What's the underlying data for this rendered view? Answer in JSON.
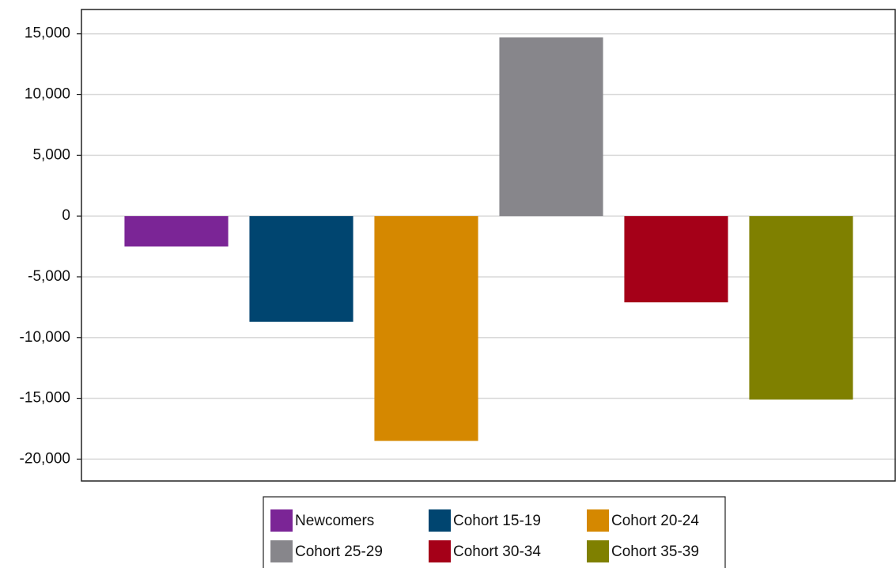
{
  "chart_data": {
    "type": "bar",
    "series": [
      {
        "name": "Newcomers",
        "color": "#7b2596",
        "values": [
          -2500
        ]
      },
      {
        "name": "Cohort 15-19",
        "color": "#004570",
        "values": [
          -8700
        ]
      },
      {
        "name": "Cohort 20-24",
        "color": "#d58800",
        "values": [
          -18500
        ]
      },
      {
        "name": "Cohort 25-29",
        "color": "#87868b",
        "values": [
          14700
        ]
      },
      {
        "name": "Cohort 30-34",
        "color": "#a50018",
        "values": [
          -7100
        ]
      },
      {
        "name": "Cohort 35-39",
        "color": "#7f8000",
        "values": [
          -15100
        ]
      }
    ],
    "ylim": [
      -21800,
      17000
    ],
    "yticks": [
      {
        "value": -20000,
        "label": "-20,000"
      },
      {
        "value": -15000,
        "label": "-15,000"
      },
      {
        "value": -10000,
        "label": "-10,000"
      },
      {
        "value": -5000,
        "label": "-5,000"
      },
      0,
      {
        "value": 5000,
        "label": "5,000"
      },
      {
        "value": 10000,
        "label": "10,000"
      },
      {
        "value": 15000,
        "label": "15,000"
      }
    ],
    "grid": true,
    "legend": "bottom"
  }
}
